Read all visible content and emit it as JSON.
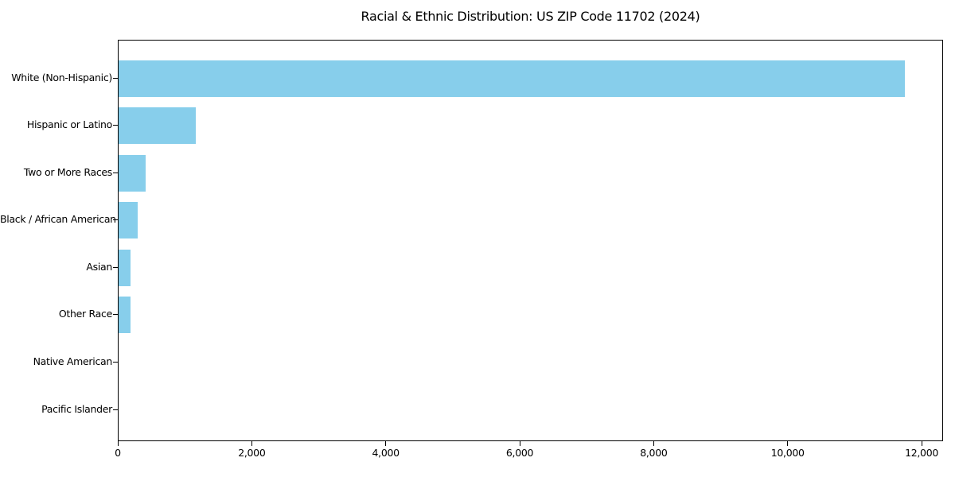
{
  "chart_data": {
    "type": "bar",
    "orientation": "horizontal",
    "title": "Racial & Ethnic Distribution: US ZIP Code 11702 (2024)",
    "categories": [
      "White (Non-Hispanic)",
      "Hispanic or Latino",
      "Two or More Races",
      "Black / African American",
      "Asian",
      "Other Race",
      "Native American",
      "Pacific Islander"
    ],
    "values": [
      11740,
      1150,
      405,
      290,
      180,
      175,
      0,
      0
    ],
    "xlabel": "",
    "ylabel": "",
    "xlim": [
      0,
      12320
    ],
    "xticks": [
      0,
      2000,
      4000,
      6000,
      8000,
      10000,
      12000
    ],
    "xtick_labels": [
      "0",
      "2,000",
      "4,000",
      "6,000",
      "8,000",
      "10,000",
      "12,000"
    ],
    "bar_color": "#87CEEB",
    "axis_color": "#000000",
    "background_color": "#ffffff",
    "grid": false,
    "legend": null
  }
}
